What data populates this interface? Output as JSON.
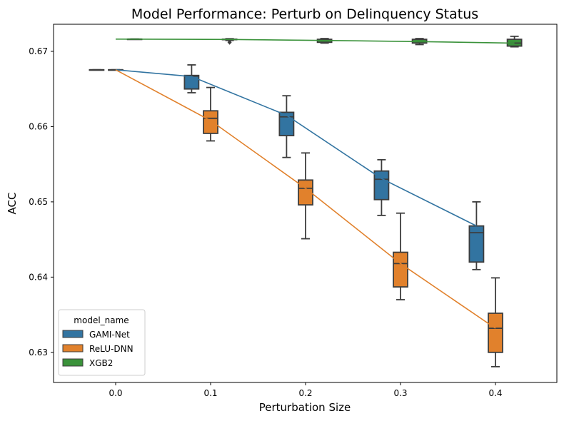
{
  "chart_data": {
    "type": "box",
    "title": "Model Performance: Perturb on Delinquency Status",
    "xlabel": "Perturbation Size",
    "ylabel": "ACC",
    "categories": [
      "0.0",
      "0.1",
      "0.2",
      "0.3",
      "0.4"
    ],
    "ylim": [
      0.626,
      0.6736
    ],
    "yticks": [
      0.63,
      0.64,
      0.65,
      0.66,
      0.67
    ],
    "ytick_labels": [
      "0.63",
      "0.64",
      "0.65",
      "0.66",
      "0.67"
    ],
    "grid": false,
    "legend": {
      "title": "model_name",
      "placement": "lower-left"
    },
    "series": [
      {
        "name": "GAMI-Net",
        "color": "#3274a1",
        "mean_line": [
          0.66755,
          0.66665,
          0.6615,
          0.6531,
          0.6468
        ],
        "boxes": [
          {
            "category": "0.0",
            "min": 0.66755,
            "q1": 0.66755,
            "median": 0.66755,
            "q3": 0.66755,
            "max": 0.66755
          },
          {
            "category": "0.1",
            "min": 0.6645,
            "q1": 0.665,
            "median": 0.6667,
            "q3": 0.6668,
            "max": 0.6682
          },
          {
            "category": "0.2",
            "min": 0.6559,
            "q1": 0.6588,
            "median": 0.6613,
            "q3": 0.6619,
            "max": 0.6641
          },
          {
            "category": "0.3",
            "min": 0.6482,
            "q1": 0.6503,
            "median": 0.653,
            "q3": 0.6541,
            "max": 0.6556
          },
          {
            "category": "0.4",
            "min": 0.641,
            "q1": 0.642,
            "median": 0.6459,
            "q3": 0.6468,
            "max": 0.65
          }
        ]
      },
      {
        "name": "ReLU-DNN",
        "color": "#e1812c",
        "mean_line": [
          0.66755,
          0.6608,
          0.6518,
          0.6418,
          0.6332
        ],
        "boxes": [
          {
            "category": "0.0",
            "min": 0.66755,
            "q1": 0.66755,
            "median": 0.66755,
            "q3": 0.66755,
            "max": 0.66755
          },
          {
            "category": "0.1",
            "min": 0.6581,
            "q1": 0.6591,
            "median": 0.6611,
            "q3": 0.6621,
            "max": 0.6652
          },
          {
            "category": "0.2",
            "min": 0.6451,
            "q1": 0.6496,
            "median": 0.6518,
            "q3": 0.6529,
            "max": 0.6565
          },
          {
            "category": "0.3",
            "min": 0.637,
            "q1": 0.6387,
            "median": 0.6418,
            "q3": 0.6433,
            "max": 0.6485
          },
          {
            "category": "0.4",
            "min": 0.6281,
            "q1": 0.63,
            "median": 0.6332,
            "q3": 0.6352,
            "max": 0.6399
          }
        ]
      },
      {
        "name": "XGB2",
        "color": "#3a923a",
        "mean_line": [
          0.67163,
          0.67158,
          0.67145,
          0.6713,
          0.6711
        ],
        "boxes": [
          {
            "category": "0.0",
            "min": 0.67163,
            "q1": 0.67163,
            "median": 0.67163,
            "q3": 0.67163,
            "max": 0.67163
          },
          {
            "category": "0.1",
            "min": 0.67145,
            "q1": 0.67155,
            "median": 0.67158,
            "q3": 0.67162,
            "max": 0.67168,
            "outliers": [
              0.6712
            ]
          },
          {
            "category": "0.2",
            "min": 0.6711,
            "q1": 0.6712,
            "median": 0.67145,
            "q3": 0.6716,
            "max": 0.6717
          },
          {
            "category": "0.3",
            "min": 0.6709,
            "q1": 0.6711,
            "median": 0.6713,
            "q3": 0.6716,
            "max": 0.6717
          },
          {
            "category": "0.4",
            "min": 0.6706,
            "q1": 0.6707,
            "median": 0.6711,
            "q3": 0.6716,
            "max": 0.672
          }
        ]
      }
    ]
  }
}
